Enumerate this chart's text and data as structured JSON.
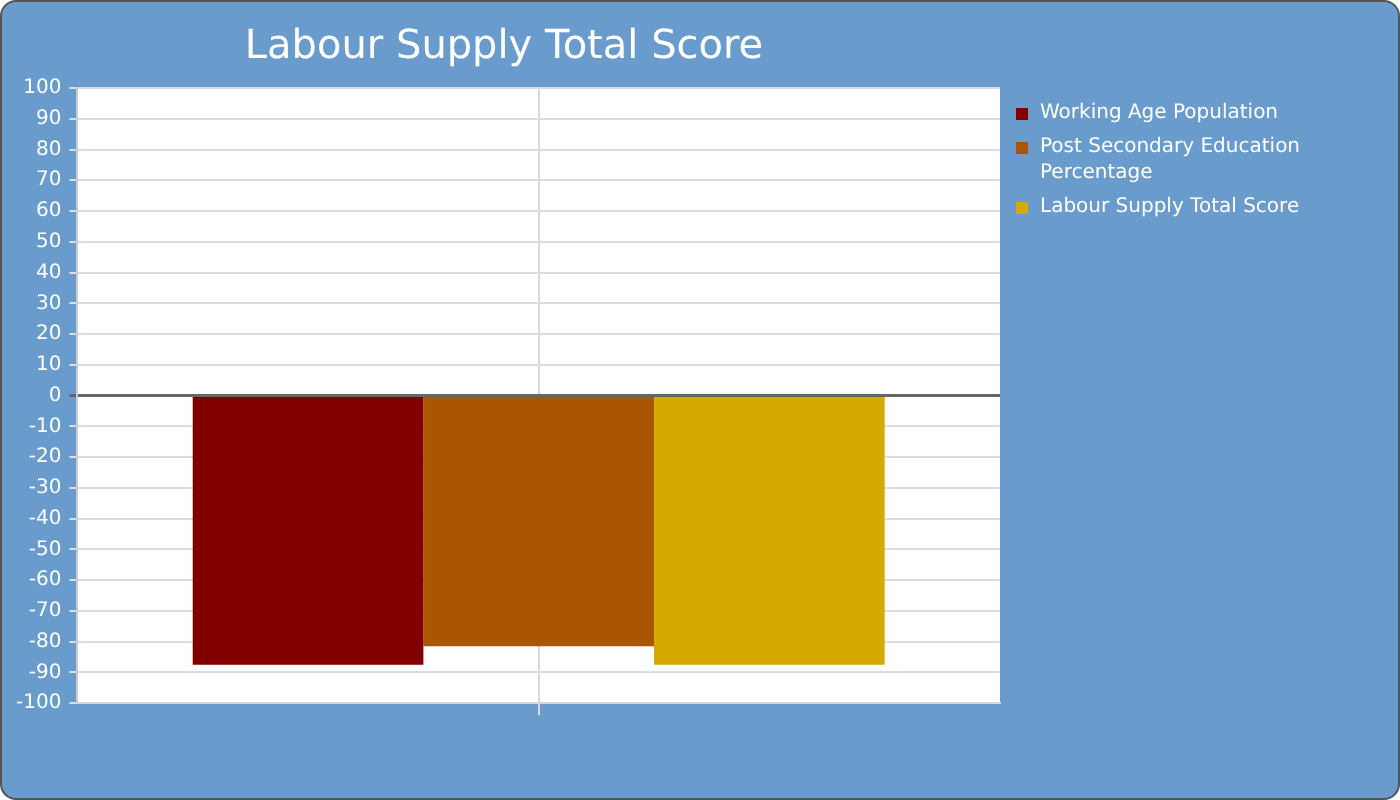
{
  "chart_data": {
    "type": "bar",
    "title": "Labour Supply Total Score",
    "categories": [
      null
    ],
    "series": [
      {
        "name": "Working Age Population",
        "color": "#800000",
        "values": [
          -87.5
        ]
      },
      {
        "name": "Post Secondary Education Percentage",
        "color": "#aa5500",
        "values": [
          -81.5
        ]
      },
      {
        "name": "Labour Supply Total Score",
        "color": "#d4aa00",
        "values": [
          -87.5
        ]
      }
    ],
    "ylim": [
      -100,
      100
    ],
    "yticks": [
      -100,
      -90,
      -80,
      -70,
      -60,
      -50,
      -40,
      -30,
      -20,
      -10,
      0,
      10,
      20,
      30,
      40,
      50,
      60,
      70,
      80,
      90,
      100
    ],
    "grid": true,
    "legend": "top right"
  }
}
